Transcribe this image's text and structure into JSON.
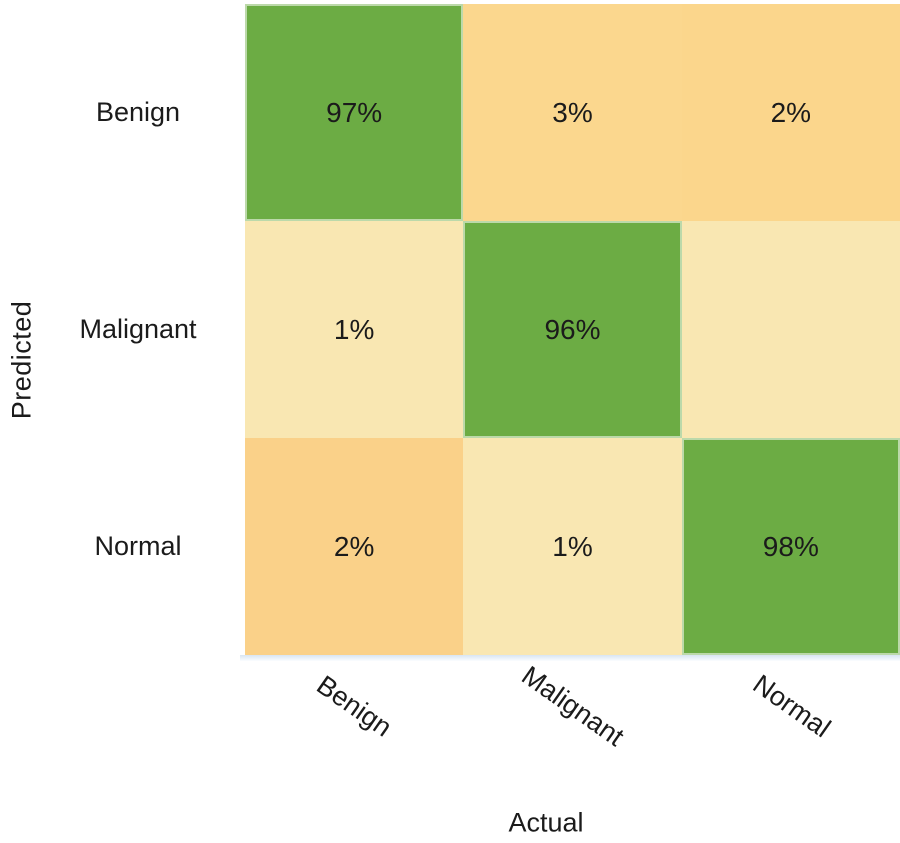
{
  "figure": {
    "y_axis_label": "Predicted",
    "x_axis_label": "Actual"
  },
  "matrix": {
    "row_labels": [
      "Benign",
      "Malignant",
      "Normal"
    ],
    "col_labels": [
      "Benign",
      "Malignant",
      "Normal"
    ],
    "cells": [
      [
        {
          "value": "97%",
          "color": "#6CAC44",
          "diagonal": true
        },
        {
          "value": "3%",
          "color": "#FBD78E",
          "diagonal": false
        },
        {
          "value": "2%",
          "color": "#FBD68C",
          "diagonal": false
        }
      ],
      [
        {
          "value": "1%",
          "color": "#F9E7B2",
          "diagonal": false
        },
        {
          "value": "96%",
          "color": "#6CAC44",
          "diagonal": true
        },
        {
          "value": "",
          "color": "#F9E7B2",
          "diagonal": false
        }
      ],
      [
        {
          "value": "2%",
          "color": "#FAD189",
          "diagonal": false
        },
        {
          "value": "1%",
          "color": "#F9E7B2",
          "diagonal": false
        },
        {
          "value": "98%",
          "color": "#6CAC44",
          "diagonal": true
        }
      ]
    ]
  },
  "chart_data": {
    "type": "heatmap",
    "title": "",
    "xlabel": "Actual",
    "ylabel": "Predicted",
    "x_categories": [
      "Benign",
      "Malignant",
      "Normal"
    ],
    "y_categories": [
      "Benign",
      "Malignant",
      "Normal"
    ],
    "values_percent": [
      [
        97,
        3,
        2
      ],
      [
        1,
        96,
        null
      ],
      [
        2,
        1,
        98
      ]
    ],
    "cell_labels": [
      [
        "97%",
        "3%",
        "2%"
      ],
      [
        "1%",
        "96%",
        ""
      ],
      [
        "2%",
        "1%",
        "98%"
      ]
    ],
    "colorscale": {
      "high_green": "#6CAC44",
      "mid_orange": "#FBD68C",
      "low_cream": "#F9E7B2"
    },
    "legend": "none",
    "grid": "off",
    "x_tick_rotation_deg": 35
  },
  "colors": {
    "diagonal_green": "#6CAC44",
    "orange_light": "#FBD78E",
    "orange_medium": "#FAD189",
    "cream": "#F9E7B2",
    "text": "#1B1B1B",
    "bottom_edge": "#DCE8F4",
    "background": "#FFFFFF"
  }
}
